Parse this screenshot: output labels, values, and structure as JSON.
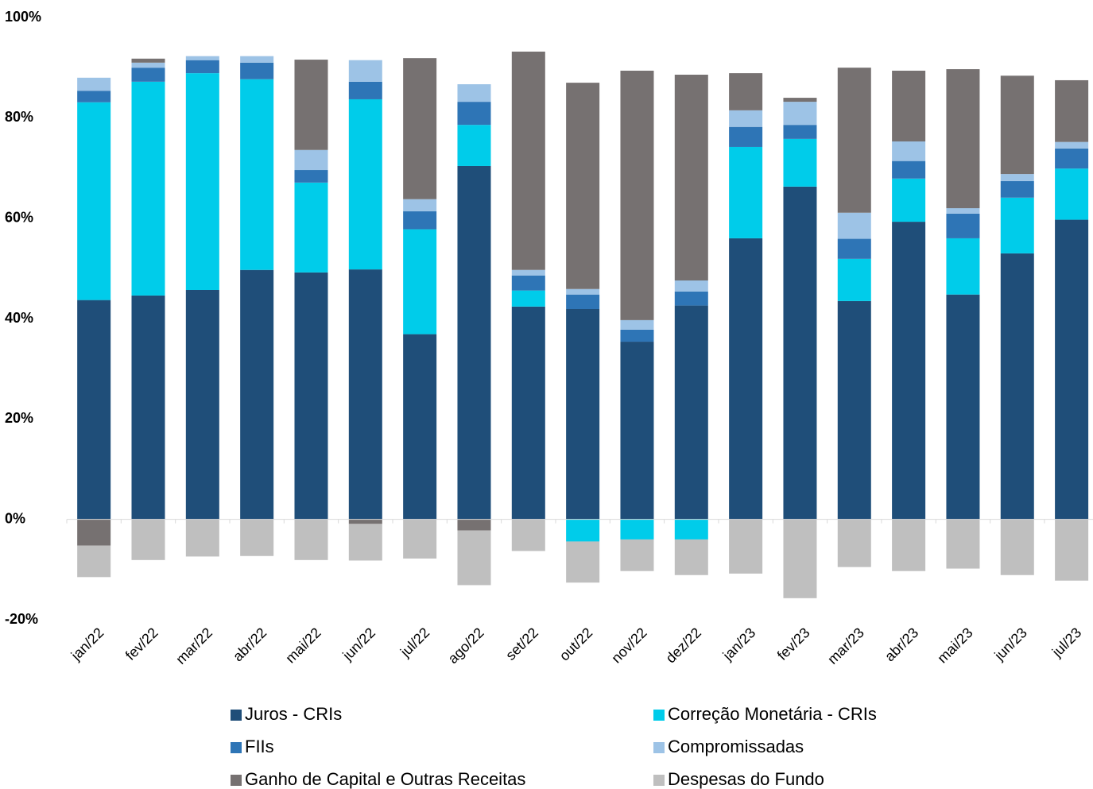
{
  "chart_data": {
    "type": "stacked_bar",
    "categories": [
      "jan/22",
      "fev/22",
      "mar/22",
      "abr/22",
      "mai/22",
      "jun/22",
      "jul/22",
      "ago/22",
      "set/22",
      "out/22",
      "nov/22",
      "dez/22",
      "jan/23",
      "fev/23",
      "mar/23",
      "abr/23",
      "mai/23",
      "jun/23",
      "jul/23"
    ],
    "series": [
      {
        "name": "Juros - CRIs",
        "color": "#1f4e79",
        "values": [
          43.7,
          44.6,
          45.7,
          49.7,
          49.2,
          49.8,
          36.9,
          70.4,
          42.4,
          41.9,
          35.4,
          42.6,
          56.0,
          66.3,
          43.5,
          59.3,
          44.8,
          53.0,
          59.7
        ]
      },
      {
        "name": "Correção Monetária - CRIs",
        "color": "#00ccea",
        "values": [
          39.4,
          42.6,
          43.2,
          38.0,
          17.9,
          33.9,
          20.9,
          8.2,
          3.2,
          -4.4,
          -4.0,
          -4.0,
          18.2,
          9.5,
          8.4,
          8.6,
          11.2,
          11.1,
          10.2
        ]
      },
      {
        "name": "FIIs",
        "color": "#2e75b6",
        "values": [
          2.3,
          2.8,
          2.6,
          3.3,
          2.5,
          3.5,
          3.6,
          4.6,
          3.0,
          2.9,
          2.4,
          2.8,
          4.0,
          2.8,
          4.0,
          3.5,
          4.9,
          3.3,
          4.0
        ]
      },
      {
        "name": "Compromissadas",
        "color": "#9dc3e6",
        "values": [
          2.6,
          1.0,
          0.8,
          1.3,
          4.0,
          4.3,
          2.4,
          3.5,
          1.1,
          1.1,
          1.9,
          2.2,
          3.3,
          4.6,
          5.2,
          3.9,
          1.1,
          1.4,
          1.3
        ]
      },
      {
        "name": "Ganho de Capital e Outras Receitas",
        "color": "#767171",
        "values": [
          -5.2,
          0.8,
          0,
          0,
          18.0,
          -0.9,
          28.1,
          -2.2,
          43.5,
          41.1,
          49.7,
          41.0,
          7.4,
          0.8,
          28.9,
          14.1,
          27.7,
          19.6,
          12.3
        ]
      },
      {
        "name": "Despesas do Fundo",
        "color": "#bfbfbf",
        "values": [
          -6.3,
          -8.1,
          -7.4,
          -7.3,
          -8.1,
          -7.3,
          -7.8,
          -10.9,
          -6.3,
          -8.2,
          -6.3,
          -7.1,
          -10.8,
          -15.7,
          -9.5,
          -10.3,
          -9.8,
          -11.1,
          -12.2
        ]
      }
    ],
    "ylim": [
      -20,
      100
    ],
    "yticks": [
      {
        "value": -20,
        "label": "-20%"
      },
      {
        "value": 0,
        "label": "0%"
      },
      {
        "value": 20,
        "label": "20%"
      },
      {
        "value": 40,
        "label": "40%"
      },
      {
        "value": 60,
        "label": "60%"
      },
      {
        "value": 80,
        "label": "80%"
      },
      {
        "value": 100,
        "label": "100%"
      }
    ],
    "grid": false
  }
}
